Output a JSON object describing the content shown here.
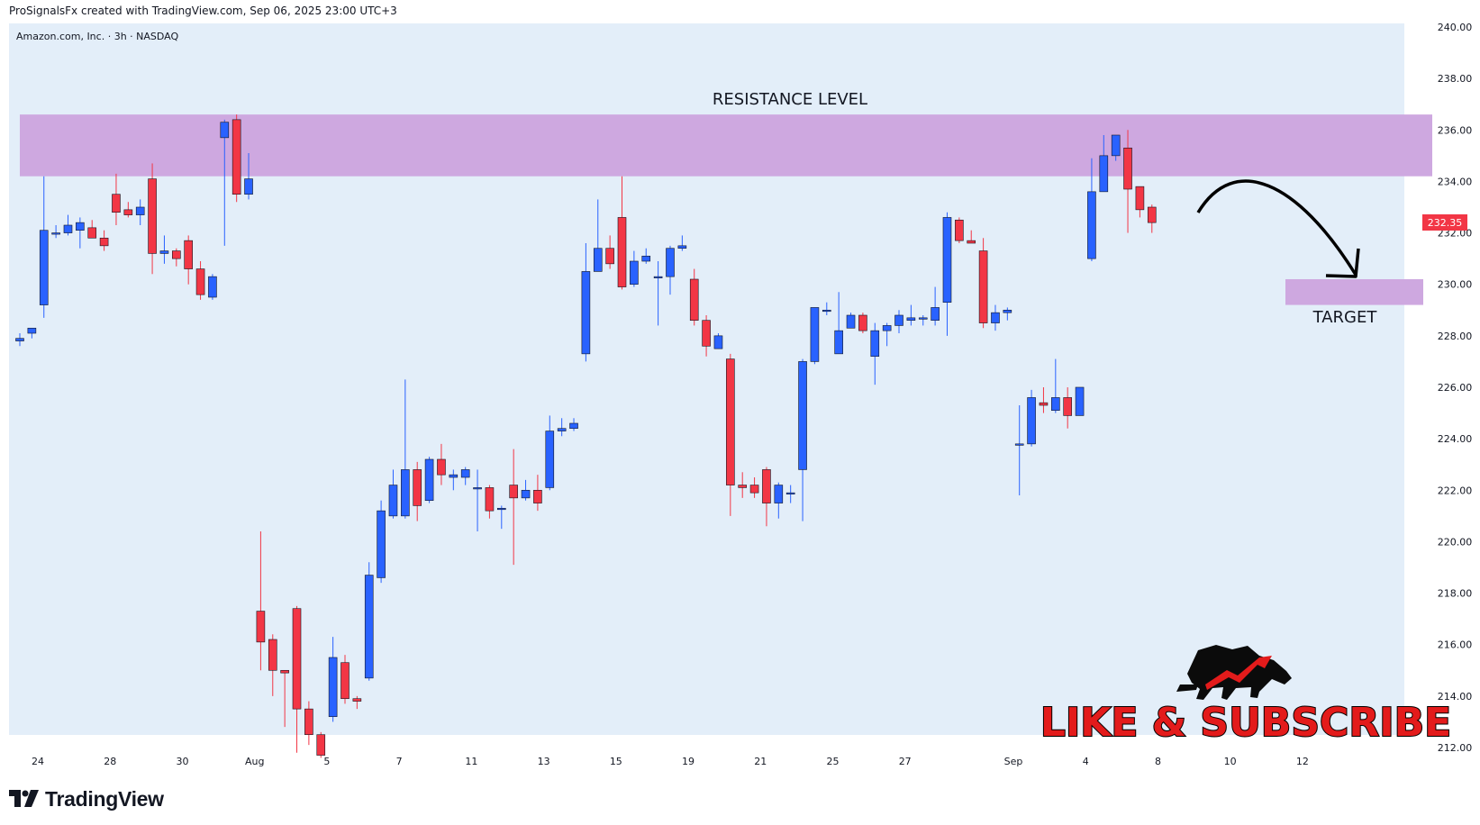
{
  "header": {
    "created_text": "ProSignalsFx created with TradingView.com, Sep 06, 2025 23:00 UTC+3"
  },
  "footer": {
    "brand": "TradingView"
  },
  "colors": {
    "chart_bg": "#e3eef9",
    "up": "#2962ff",
    "down": "#f23645",
    "zone": "#cea8e0",
    "price_tag": "#f23645",
    "text": "#131722"
  },
  "chart_data": {
    "type": "candlestick",
    "title": "Amazon.com, Inc. · 3h · NASDAQ",
    "symbol": "Amazon.com, Inc.",
    "interval": "3h",
    "exchange": "NASDAQ",
    "last_price": "232.35",
    "ylim": [
      211.5,
      240
    ],
    "y_ticks": [
      "240.00",
      "238.00",
      "236.00",
      "234.00",
      "232.00",
      "230.00",
      "228.00",
      "226.00",
      "224.00",
      "222.00",
      "220.00",
      "218.00",
      "216.00",
      "214.00",
      "212.00"
    ],
    "x_ticks": [
      {
        "label": "24",
        "i": 1.5
      },
      {
        "label": "28",
        "i": 7.5
      },
      {
        "label": "30",
        "i": 13.5
      },
      {
        "label": "Aug",
        "i": 19.5
      },
      {
        "label": "5",
        "i": 25.5
      },
      {
        "label": "7",
        "i": 31.5
      },
      {
        "label": "11",
        "i": 37.5
      },
      {
        "label": "13",
        "i": 43.5
      },
      {
        "label": "15",
        "i": 49.5
      },
      {
        "label": "19",
        "i": 55.5
      },
      {
        "label": "21",
        "i": 61.5
      },
      {
        "label": "25",
        "i": 67.5
      },
      {
        "label": "27",
        "i": 73.5
      },
      {
        "label": "Sep",
        "i": 82.5
      },
      {
        "label": "4",
        "i": 88.5
      },
      {
        "label": "8",
        "i": 94.5
      },
      {
        "label": "10",
        "i": 100.5
      },
      {
        "label": "12",
        "i": 106.5
      }
    ],
    "candles": [
      [
        227.8,
        227.9,
        227.6,
        228.1
      ],
      [
        228.1,
        228.3,
        227.9,
        228.2
      ],
      [
        229.2,
        232.1,
        228.7,
        234.2
      ],
      [
        232.0,
        232.0,
        231.8,
        232.3
      ],
      [
        232.0,
        232.3,
        231.9,
        232.7
      ],
      [
        232.1,
        232.4,
        231.4,
        232.6
      ],
      [
        232.2,
        231.8,
        231.8,
        232.5
      ],
      [
        231.8,
        231.5,
        231.3,
        232.1
      ],
      [
        233.5,
        232.8,
        232.3,
        234.3
      ],
      [
        232.9,
        232.7,
        232.6,
        233.2
      ],
      [
        232.7,
        233.0,
        232.3,
        233.3
      ],
      [
        234.1,
        231.2,
        230.4,
        234.7
      ],
      [
        231.2,
        231.3,
        230.8,
        231.9
      ],
      [
        231.3,
        231.0,
        230.7,
        231.4
      ],
      [
        231.7,
        230.6,
        230.0,
        231.9
      ],
      [
        230.6,
        229.6,
        229.4,
        230.9
      ],
      [
        229.5,
        230.3,
        229.4,
        230.4
      ],
      [
        235.7,
        236.3,
        231.5,
        236.4
      ],
      [
        236.4,
        233.5,
        233.2,
        236.6
      ],
      [
        233.5,
        234.1,
        233.3,
        235.1
      ],
      [
        217.3,
        216.1,
        215.0,
        220.4
      ],
      [
        216.2,
        215.0,
        214.0,
        216.4
      ],
      [
        215.0,
        214.9,
        212.8,
        215.0
      ],
      [
        217.4,
        213.5,
        211.8,
        217.5
      ],
      [
        213.5,
        212.5,
        212.1,
        213.8
      ],
      [
        212.5,
        211.7,
        211.6,
        212.6
      ],
      [
        213.2,
        215.5,
        213.0,
        216.3
      ],
      [
        215.3,
        213.9,
        213.7,
        215.6
      ],
      [
        213.9,
        213.8,
        213.5,
        214.0
      ],
      [
        214.7,
        218.7,
        214.6,
        219.2
      ],
      [
        218.6,
        221.2,
        218.4,
        221.6
      ],
      [
        221.0,
        222.2,
        220.9,
        222.8
      ],
      [
        221.0,
        222.8,
        220.9,
        226.3
      ],
      [
        222.8,
        221.4,
        220.8,
        223.1
      ],
      [
        221.6,
        223.2,
        221.5,
        223.3
      ],
      [
        223.2,
        222.6,
        222.2,
        223.8
      ],
      [
        222.5,
        222.6,
        222.0,
        222.8
      ],
      [
        222.5,
        222.8,
        222.2,
        222.9
      ],
      [
        222.1,
        222.1,
        220.4,
        222.8
      ],
      [
        222.1,
        221.2,
        220.9,
        222.2
      ],
      [
        221.3,
        221.3,
        220.5,
        221.4
      ],
      [
        222.2,
        221.7,
        219.1,
        223.6
      ],
      [
        221.7,
        222.0,
        221.6,
        222.4
      ],
      [
        222.0,
        221.5,
        221.2,
        222.6
      ],
      [
        222.1,
        224.3,
        222.0,
        224.9
      ],
      [
        224.3,
        224.4,
        224.1,
        224.8
      ],
      [
        224.4,
        224.6,
        224.3,
        224.8
      ],
      [
        227.3,
        230.5,
        227.0,
        231.6
      ],
      [
        230.5,
        231.4,
        230.5,
        233.3
      ],
      [
        231.4,
        230.8,
        230.6,
        231.9
      ],
      [
        232.6,
        229.9,
        229.8,
        234.2
      ],
      [
        230.0,
        230.9,
        229.9,
        231.3
      ],
      [
        230.9,
        231.1,
        230.8,
        231.4
      ],
      [
        230.3,
        230.3,
        228.4,
        230.9
      ],
      [
        230.3,
        231.4,
        229.6,
        231.5
      ],
      [
        231.4,
        231.5,
        231.3,
        231.9
      ],
      [
        230.2,
        228.6,
        228.4,
        230.6
      ],
      [
        228.6,
        227.6,
        227.2,
        228.8
      ],
      [
        227.5,
        228.0,
        227.5,
        228.1
      ],
      [
        227.1,
        222.2,
        221.0,
        227.3
      ],
      [
        222.2,
        222.1,
        221.7,
        222.7
      ],
      [
        222.2,
        221.9,
        221.7,
        222.5
      ],
      [
        222.8,
        221.5,
        220.6,
        222.9
      ],
      [
        221.5,
        222.2,
        220.9,
        222.3
      ],
      [
        221.9,
        221.9,
        221.5,
        222.2
      ],
      [
        222.8,
        227.0,
        220.8,
        227.1
      ],
      [
        227.0,
        229.1,
        226.9,
        229.1
      ],
      [
        229.0,
        229.0,
        228.8,
        229.3
      ],
      [
        227.3,
        228.2,
        227.3,
        229.7
      ],
      [
        228.3,
        228.8,
        228.3,
        228.9
      ],
      [
        228.8,
        228.2,
        228.1,
        228.9
      ],
      [
        227.2,
        228.2,
        226.1,
        228.5
      ],
      [
        228.2,
        228.4,
        227.6,
        228.5
      ],
      [
        228.4,
        228.8,
        228.1,
        229.0
      ],
      [
        228.6,
        228.7,
        228.4,
        229.2
      ],
      [
        228.7,
        228.7,
        228.4,
        228.8
      ],
      [
        228.6,
        229.1,
        228.4,
        229.9
      ],
      [
        229.3,
        232.6,
        228.0,
        232.8
      ],
      [
        232.5,
        231.7,
        231.6,
        232.6
      ],
      [
        231.7,
        231.6,
        231.6,
        232.1
      ],
      [
        231.3,
        228.5,
        228.3,
        231.8
      ],
      [
        228.5,
        228.9,
        228.2,
        229.2
      ],
      [
        228.9,
        229.0,
        228.6,
        229.1
      ],
      [
        223.8,
        223.8,
        221.8,
        225.3
      ],
      [
        223.8,
        225.6,
        223.7,
        225.9
      ],
      [
        225.4,
        225.3,
        225.0,
        226.0
      ],
      [
        225.1,
        225.6,
        225.0,
        227.1
      ],
      [
        225.6,
        224.9,
        224.4,
        226.0
      ],
      [
        224.9,
        226.0,
        224.9,
        226.0
      ],
      [
        231.0,
        233.6,
        230.9,
        234.9
      ],
      [
        233.6,
        235.0,
        233.6,
        235.8
      ],
      [
        235.0,
        235.8,
        234.8,
        235.8
      ],
      [
        235.3,
        233.7,
        232.0,
        236.0
      ],
      [
        233.8,
        232.9,
        232.6,
        233.8
      ],
      [
        233.0,
        232.4,
        232.0,
        233.1
      ]
    ],
    "annotations": {
      "resistance_label": "RESISTANCE LEVEL",
      "resistance_zone": [
        234.2,
        236.6
      ],
      "target_label": "TARGET",
      "target_zone": [
        229.2,
        230.2
      ],
      "promo_text": "LIKE & SUBSCRIBE"
    }
  }
}
